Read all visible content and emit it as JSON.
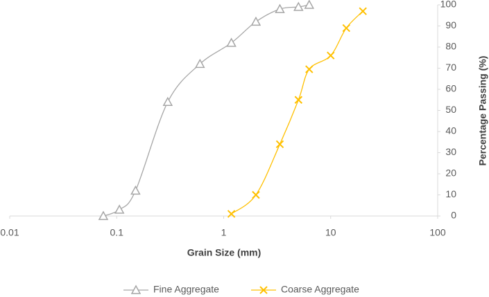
{
  "chart_data": {
    "type": "line",
    "x_label": "Grain Size (mm)",
    "y_label": "Percentage Passing (%)",
    "xscale": "log",
    "xlim": [
      0.01,
      100
    ],
    "xticks": [
      0.01,
      0.1,
      1,
      10,
      100
    ],
    "ylim": [
      0,
      100
    ],
    "yticks": [
      0,
      10,
      20,
      30,
      40,
      50,
      60,
      70,
      80,
      90,
      100
    ],
    "y_axis_side": "right",
    "grid": false,
    "legend": "bottom",
    "series": [
      {
        "name": "Fine Aggregate",
        "color": "#a6a6a6",
        "marker": "triangle",
        "x": [
          0.075,
          0.106,
          0.15,
          0.3,
          0.6,
          1.18,
          2,
          3.35,
          5,
          6.3
        ],
        "values": [
          0,
          3,
          12,
          54,
          72,
          82,
          92,
          98,
          99,
          100
        ]
      },
      {
        "name": "Coarse Aggregate",
        "color": "#ffc000",
        "marker": "x",
        "x": [
          1.18,
          2,
          3.35,
          5,
          6.3,
          10,
          14,
          20
        ],
        "values": [
          1,
          10,
          34,
          55,
          69.5,
          76,
          89,
          97
        ]
      }
    ]
  }
}
